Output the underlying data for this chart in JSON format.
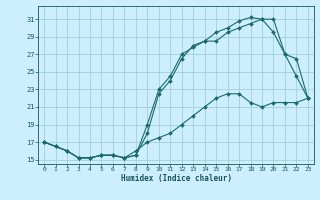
{
  "title": "",
  "xlabel": "Humidex (Indice chaleur)",
  "bg_color": "#cceeff",
  "line_color": "#1a6b6b",
  "grid_color": "#99cccc",
  "xlim": [
    -0.5,
    23.5
  ],
  "ylim": [
    14.5,
    32.5
  ],
  "yticks": [
    15,
    17,
    19,
    21,
    23,
    25,
    27,
    29,
    31
  ],
  "xticks": [
    0,
    1,
    2,
    3,
    4,
    5,
    6,
    7,
    8,
    9,
    10,
    11,
    12,
    13,
    14,
    15,
    16,
    17,
    18,
    19,
    20,
    21,
    22,
    23
  ],
  "line1_x": [
    0,
    1,
    2,
    3,
    4,
    5,
    6,
    7,
    8,
    9,
    10,
    11,
    12,
    13,
    14,
    15,
    16,
    17,
    18,
    19,
    20,
    21,
    22,
    23
  ],
  "line1_y": [
    17.0,
    16.5,
    16.0,
    15.2,
    15.2,
    15.5,
    15.5,
    15.2,
    16.0,
    17.0,
    17.5,
    18.0,
    19.0,
    20.0,
    21.0,
    22.0,
    22.5,
    22.5,
    21.5,
    21.0,
    21.5,
    21.5,
    21.5,
    22.0
  ],
  "line2_x": [
    0,
    1,
    2,
    3,
    4,
    5,
    6,
    7,
    8,
    9,
    10,
    11,
    12,
    13,
    14,
    15,
    16,
    17,
    18,
    19,
    20,
    21,
    22,
    23
  ],
  "line2_y": [
    17.0,
    16.5,
    16.0,
    15.2,
    15.2,
    15.5,
    15.5,
    15.2,
    15.5,
    18.0,
    22.5,
    24.0,
    26.5,
    28.0,
    28.5,
    28.5,
    29.5,
    30.0,
    30.5,
    31.0,
    29.5,
    27.0,
    24.5,
    22.0
  ],
  "line3_x": [
    0,
    2,
    3,
    4,
    5,
    6,
    7,
    8,
    9,
    10,
    11,
    12,
    13,
    14,
    15,
    16,
    17,
    18,
    19,
    20,
    21,
    22,
    23
  ],
  "line3_y": [
    17.0,
    16.0,
    15.2,
    15.2,
    15.5,
    15.5,
    15.2,
    15.5,
    19.0,
    23.0,
    24.5,
    27.0,
    27.8,
    28.5,
    29.5,
    30.0,
    30.8,
    31.2,
    31.0,
    31.0,
    27.0,
    26.5,
    22.0
  ]
}
